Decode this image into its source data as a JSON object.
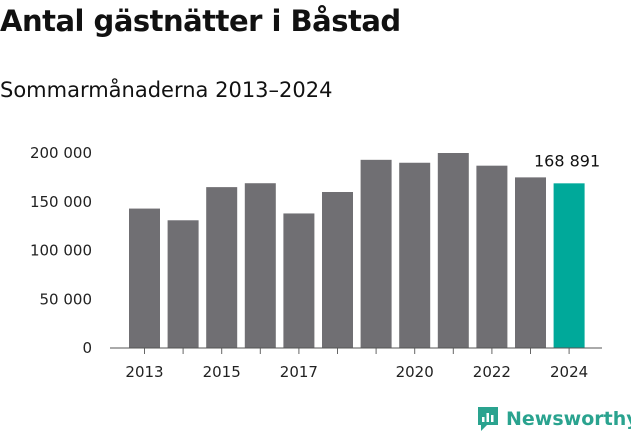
{
  "header": {
    "title": "Antal gästnätter i Båstad",
    "subtitle": "Sommarmånaderna 2013–2024"
  },
  "chart_data": {
    "type": "bar",
    "categories": [
      "2013",
      "2014",
      "2015",
      "2016",
      "2017",
      "2018",
      "2019",
      "2020",
      "2021",
      "2022",
      "2023",
      "2024"
    ],
    "values": [
      143000,
      131000,
      165000,
      169000,
      138000,
      160000,
      193000,
      190000,
      200000,
      187000,
      175000,
      168891
    ],
    "x_tick_labels": [
      "2013",
      "",
      "2015",
      "",
      "2017",
      "",
      "",
      "2020",
      "",
      "2022",
      "",
      "2024"
    ],
    "y_ticks": [
      0,
      50000,
      100000,
      150000,
      200000
    ],
    "y_tick_labels": [
      "0",
      "50 000",
      "100 000",
      "150 000",
      "200 000"
    ],
    "ylim": [
      0,
      200000
    ],
    "highlight_index": 11,
    "annotation": "168 891",
    "colors": {
      "bar": "#706f73",
      "highlight": "#00a99a"
    },
    "grid": false
  },
  "footer": {
    "brand": "Newsworthy",
    "brand_color": "#2aa38f"
  }
}
